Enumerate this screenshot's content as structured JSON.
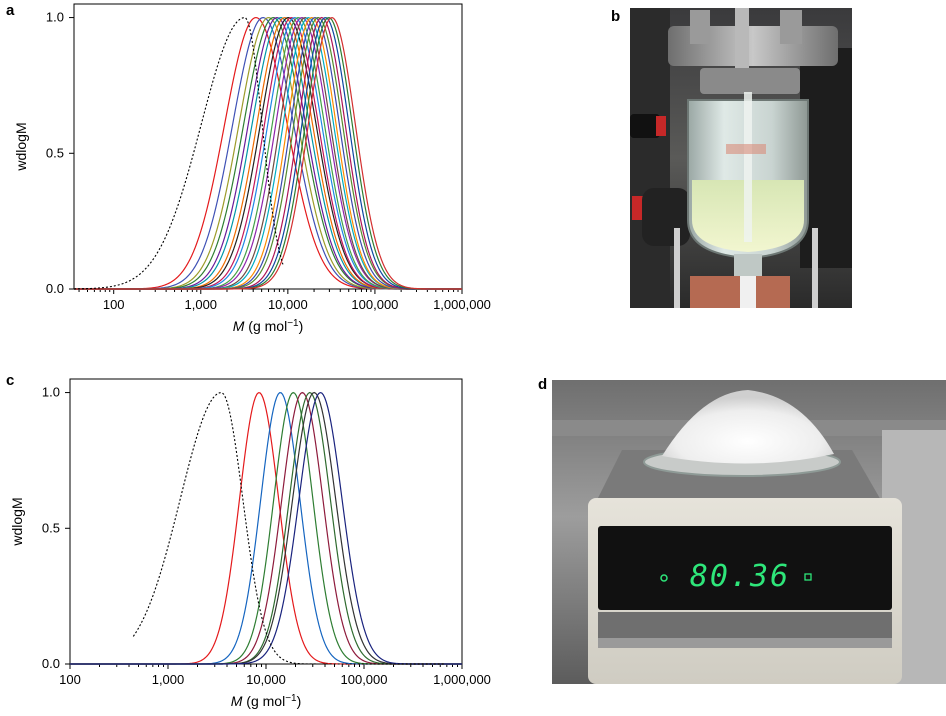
{
  "panels": {
    "a": "a",
    "b": "b",
    "c": "c",
    "d": "d"
  },
  "chart_data": [
    {
      "panel": "a",
      "type": "line",
      "xscale": "log",
      "xlim": [
        35,
        1000000
      ],
      "ylim": [
        0,
        1.05
      ],
      "xlabel_italic": "M",
      "xlabel_rest": " (g mol",
      "xlabel_sup": "−1",
      "xlabel_end": ")",
      "ylabel": "wdlogM",
      "xticks": [
        {
          "v": 100,
          "label": "100"
        },
        {
          "v": 1000,
          "label": "1,000"
        },
        {
          "v": 10000,
          "label": "10,000"
        },
        {
          "v": 100000,
          "label": "100,000"
        },
        {
          "v": 1000000,
          "label": "1,000,000"
        }
      ],
      "yticks": [
        {
          "v": 0,
          "label": "0.0"
        },
        {
          "v": 0.5,
          "label": "0.5"
        },
        {
          "v": 1,
          "label": "1.0"
        }
      ],
      "grid": false,
      "reference": {
        "style": "dotted",
        "color": "#000000",
        "peak": 3200,
        "sigma_left": 0.5,
        "sigma_right": 0.2,
        "low_shoulder": 0.05,
        "cut_high": 9000
      },
      "series": [
        {
          "color": "#e41a1c",
          "peak": 4300,
          "sigma": 0.36
        },
        {
          "color": "#3f51b5",
          "peak": 5200,
          "sigma": 0.35
        },
        {
          "color": "#9c9c2a",
          "peak": 6000,
          "sigma": 0.34
        },
        {
          "color": "#2e7d32",
          "peak": 6800,
          "sigma": 0.34
        },
        {
          "color": "#6a1b9a",
          "peak": 7500,
          "sigma": 0.33
        },
        {
          "color": "#0097a7",
          "peak": 8300,
          "sigma": 0.33
        },
        {
          "color": "#ef6c00",
          "peak": 9200,
          "sigma": 0.32
        },
        {
          "color": "#212121",
          "peak": 10100,
          "sigma": 0.32
        },
        {
          "color": "#c2185b",
          "peak": 11000,
          "sigma": 0.31
        },
        {
          "color": "#1e88e5",
          "peak": 12000,
          "sigma": 0.31
        },
        {
          "color": "#43a047",
          "peak": 13200,
          "sigma": 0.3
        },
        {
          "color": "#8e24aa",
          "peak": 14500,
          "sigma": 0.3
        },
        {
          "color": "#6d4c41",
          "peak": 15800,
          "sigma": 0.29
        },
        {
          "color": "#00acc1",
          "peak": 17200,
          "sigma": 0.29
        },
        {
          "color": "#fb8c00",
          "peak": 18800,
          "sigma": 0.28
        },
        {
          "color": "#3949ab",
          "peak": 20500,
          "sigma": 0.28
        },
        {
          "color": "#558b2f",
          "peak": 22300,
          "sigma": 0.28
        },
        {
          "color": "#ad1457",
          "peak": 24500,
          "sigma": 0.27
        },
        {
          "color": "#0d47a1",
          "peak": 27000,
          "sigma": 0.27
        },
        {
          "color": "#2e7d32",
          "peak": 29500,
          "sigma": 0.27
        },
        {
          "color": "#d32f2f",
          "peak": 32000,
          "sigma": 0.27
        }
      ]
    },
    {
      "panel": "c",
      "type": "line",
      "xscale": "log",
      "xlim": [
        100,
        1000000
      ],
      "ylim": [
        0,
        1.05
      ],
      "xlabel_italic": "M",
      "xlabel_rest": " (g mol",
      "xlabel_sup": "−1",
      "xlabel_end": ")",
      "ylabel": "wdlogM",
      "xticks": [
        {
          "v": 100,
          "label": "100"
        },
        {
          "v": 1000,
          "label": "1,000"
        },
        {
          "v": 10000,
          "label": "10,000"
        },
        {
          "v": 100000,
          "label": "100,000"
        },
        {
          "v": 1000000,
          "label": "1,000,000"
        }
      ],
      "yticks": [
        {
          "v": 0,
          "label": "0.0"
        },
        {
          "v": 0.5,
          "label": "0.5"
        },
        {
          "v": 1,
          "label": "1.0"
        }
      ],
      "grid": false,
      "reference": {
        "style": "dotted",
        "color": "#000000",
        "peak": 3500,
        "sigma_left": 0.42,
        "sigma_right": 0.22,
        "low_shoulder": 0.0,
        "cut_low": 430,
        "cut_high": 700000
      },
      "series": [
        {
          "color": "#e41a1c",
          "peak": 8500,
          "sigma": 0.2
        },
        {
          "color": "#1565c0",
          "peak": 14000,
          "sigma": 0.2
        },
        {
          "color": "#2e7d32",
          "peak": 19000,
          "sigma": 0.2
        },
        {
          "color": "#8e1b3c",
          "peak": 23500,
          "sigma": 0.21
        },
        {
          "color": "#2f6b2f",
          "peak": 28000,
          "sigma": 0.21
        },
        {
          "color": "#333333",
          "peak": 31000,
          "sigma": 0.22
        },
        {
          "color": "#1a237e",
          "peak": 36000,
          "sigma": 0.22
        }
      ]
    }
  ],
  "photo_d": {
    "balance_reading": "80.36",
    "display_color": "#2ee67a"
  }
}
